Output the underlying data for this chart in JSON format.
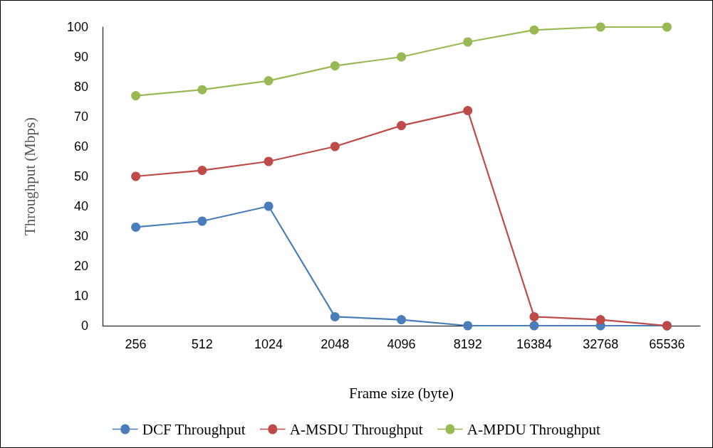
{
  "chart_data": {
    "type": "line",
    "xlabel": "Frame size (byte)",
    "ylabel": "Throughput (Mbps)",
    "categories": [
      "256",
      "512",
      "1024",
      "2048",
      "4096",
      "8192",
      "16384",
      "32768",
      "65536"
    ],
    "series": [
      {
        "name": "DCF Throughput",
        "color": "#4a7ebb",
        "values": [
          33,
          35,
          40,
          3,
          2,
          0,
          0,
          0,
          0
        ]
      },
      {
        "name": "A-MSDU Throughput",
        "color": "#be4b48",
        "values": [
          50,
          52,
          55,
          60,
          67,
          72,
          3,
          2,
          0
        ]
      },
      {
        "name": "A-MPDU Throughput",
        "color": "#98b954",
        "values": [
          77,
          79,
          82,
          87,
          90,
          95,
          99,
          100,
          100
        ]
      }
    ],
    "ylim": [
      0,
      100
    ],
    "yticks": [
      0,
      10,
      20,
      30,
      40,
      50,
      60,
      70,
      80,
      90,
      100
    ],
    "grid": false,
    "legend": "bottom",
    "marker": "circle",
    "line_style": "solid"
  }
}
